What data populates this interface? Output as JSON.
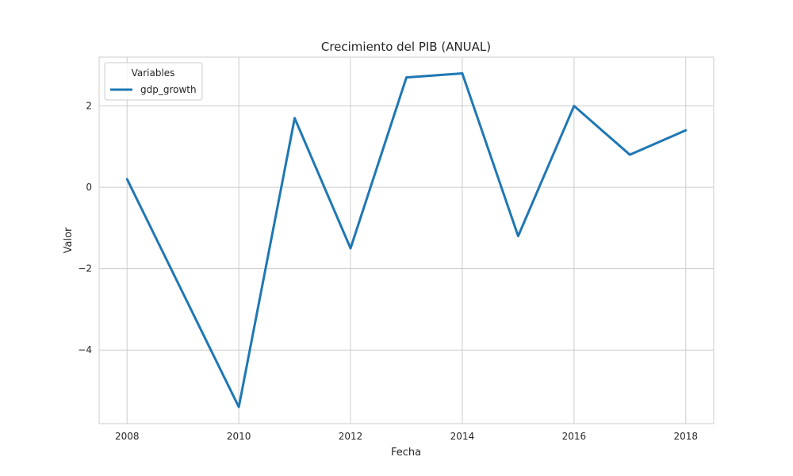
{
  "chart_data": {
    "type": "line",
    "title": "Crecimiento del PIB (ANUAL)",
    "xlabel": "Fecha",
    "ylabel": "Valor",
    "x": [
      2008,
      2009,
      2010,
      2011,
      2012,
      2013,
      2014,
      2015,
      2016,
      2017,
      2018
    ],
    "series": [
      {
        "name": "gdp_growth",
        "values": [
          0.2,
          -2.6,
          -5.4,
          1.7,
          -1.5,
          2.7,
          2.8,
          -1.2,
          2.0,
          0.8,
          1.4
        ],
        "color": "#1f77b4"
      }
    ],
    "xticks": [
      2008,
      2010,
      2012,
      2014,
      2016,
      2018
    ],
    "yticks": [
      -4,
      -2,
      0,
      2
    ],
    "ytick_labels": [
      "−4",
      "−2",
      "0",
      "2"
    ],
    "xlim": [
      2007.5,
      2018.5
    ],
    "ylim": [
      -5.81,
      3.2
    ],
    "grid": true,
    "legend": {
      "title": "Variables",
      "position": "top-left"
    }
  },
  "colors": {
    "background": "#ffffff",
    "grid": "#cccccc",
    "spine": "#cccccc",
    "line": "#1f77b4",
    "text": "#262626"
  }
}
